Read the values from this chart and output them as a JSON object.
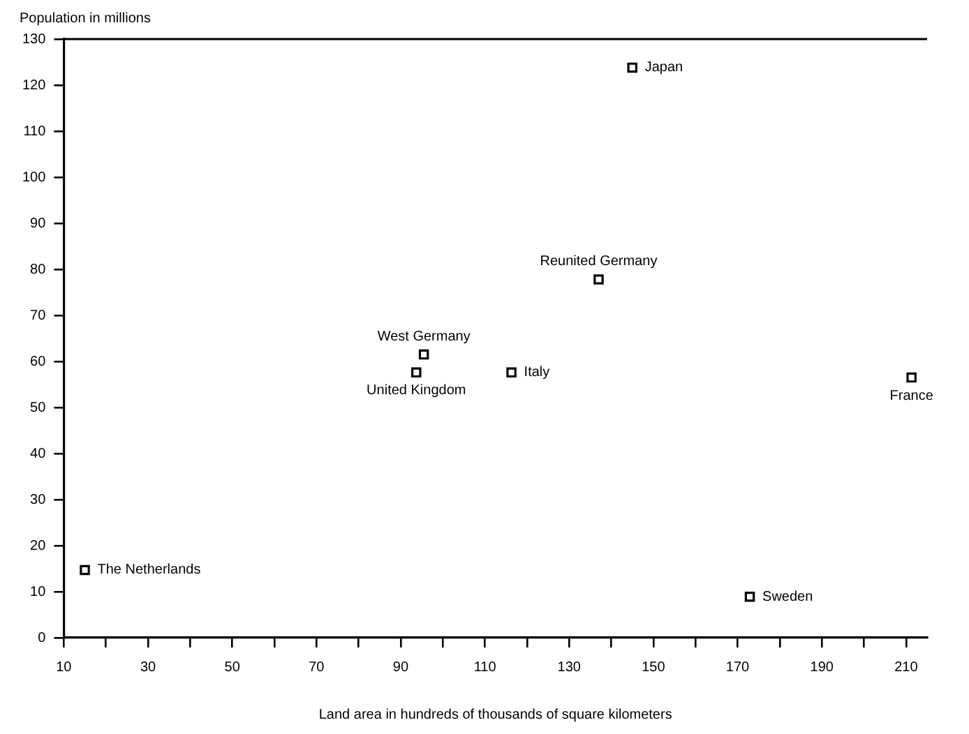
{
  "chart_data": {
    "type": "scatter",
    "xlabel": "Land area in hundreds of thousands of square kilometers",
    "ylabel": "Population in millions",
    "series": [
      {
        "color": "#000000",
        "x": [
          15,
          93.7,
          95.5,
          116.3,
          137,
          145,
          172.9,
          211.3
        ],
        "values": [
          14.7,
          57.6,
          61.5,
          57.6,
          77.8,
          123.8,
          8.9,
          56.5
        ]
      }
    ],
    "annotations": [
      {
        "text": "The Netherlands",
        "x": 15,
        "y": 14.7
      },
      {
        "text": "United Kingdom",
        "x": 93.7,
        "y": 57.6
      },
      {
        "text": "West Germany",
        "x": 95.5,
        "y": 61.5
      },
      {
        "text": "Italy",
        "x": 116.3,
        "y": 57.6
      },
      {
        "text": "Reunited Germany",
        "x": 137,
        "y": 77.8
      },
      {
        "text": "Japan",
        "x": 145,
        "y": 123.8
      },
      {
        "text": "Sweden",
        "x": 172.9,
        "y": 8.9
      },
      {
        "text": "France",
        "x": 211.3,
        "y": 56.5
      }
    ],
    "xlim": [
      10,
      215
    ],
    "xticks": [
      10,
      {
        "value": 20,
        "label": null
      },
      30,
      {
        "value": 40,
        "label": null
      },
      50,
      {
        "value": 60,
        "label": null
      },
      70,
      {
        "value": 80,
        "label": null
      },
      90,
      {
        "value": 100,
        "label": null
      },
      110,
      {
        "value": 120,
        "label": null
      },
      130,
      {
        "value": 140,
        "label": null
      },
      150,
      {
        "value": 160,
        "label": null
      },
      170,
      {
        "value": 180,
        "label": null
      },
      190,
      {
        "value": 200,
        "label": null
      },
      210
    ],
    "ylim": [
      0,
      130
    ],
    "yticks": [
      0,
      10,
      20,
      30,
      40,
      50,
      60,
      70,
      80,
      90,
      100,
      110,
      120,
      130
    ],
    "grid": false,
    "legend": false,
    "marker": "square"
  }
}
